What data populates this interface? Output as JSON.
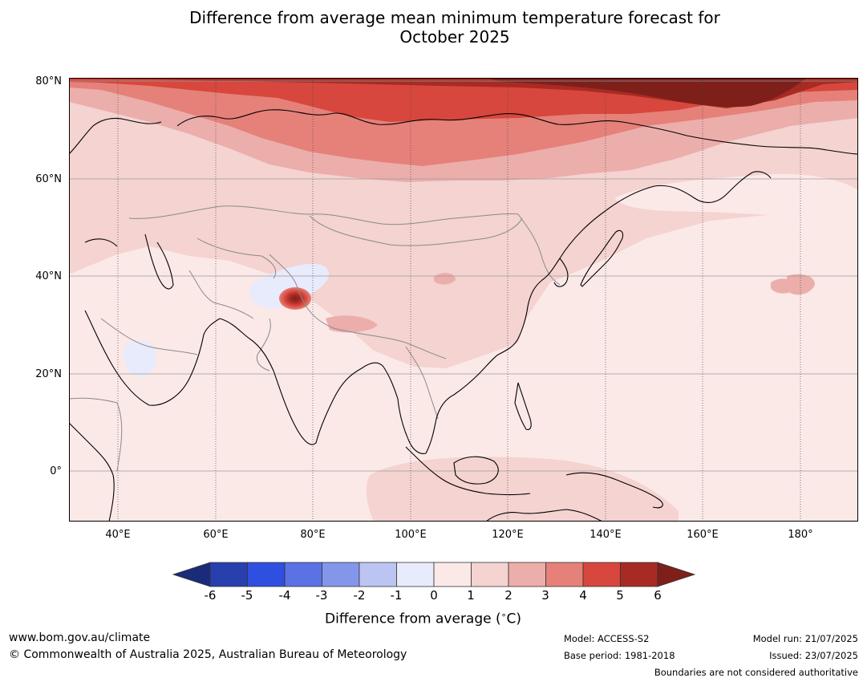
{
  "title": {
    "line1": "Difference from average mean minimum temperature forecast for",
    "line2": "October 2025"
  },
  "map": {
    "lat_labels": [
      "80°N",
      "60°N",
      "40°N",
      "20°N",
      "0°"
    ],
    "lon_labels": [
      "40°E",
      "60°E",
      "80°E",
      "100°E",
      "120°E",
      "140°E",
      "160°E",
      "180°"
    ],
    "extent": {
      "lon_min": 30,
      "lon_max": 192,
      "lat_min": -10,
      "lat_max": 81
    },
    "land_color": "#fbe9e8",
    "coastline_color": "#000000",
    "border_color": "#8a8a8a"
  },
  "colorbar": {
    "ticks": [
      "-6",
      "-5",
      "-4",
      "-3",
      "-2",
      "-1",
      "0",
      "1",
      "2",
      "3",
      "4",
      "5",
      "6"
    ],
    "colors": [
      "#1a2b7a",
      "#283fae",
      "#2f4fe0",
      "#5a72e4",
      "#8496ea",
      "#bcc5f2",
      "#e8ebfb",
      "#fbe9e8",
      "#f4d3d1",
      "#ecaeab",
      "#e58179",
      "#d7473d",
      "#a82b23",
      "#7e1f1a"
    ],
    "label": "Difference from average ($^\\circ$C)",
    "label_display": "Difference from average (",
    "label_unit": "C)"
  },
  "footer": {
    "website": "www.bom.gov.au/climate",
    "copyright": "© Commonwealth of Australia 2025, Australian Bureau of Meteorology",
    "model": "Model: ACCESS-S2",
    "base_period": "Base period: 1981-2018",
    "model_run": "Model run: 21/07/2025",
    "issued": "Issued: 23/07/2025",
    "disclaimer": "Boundaries are not considered authoritative"
  }
}
